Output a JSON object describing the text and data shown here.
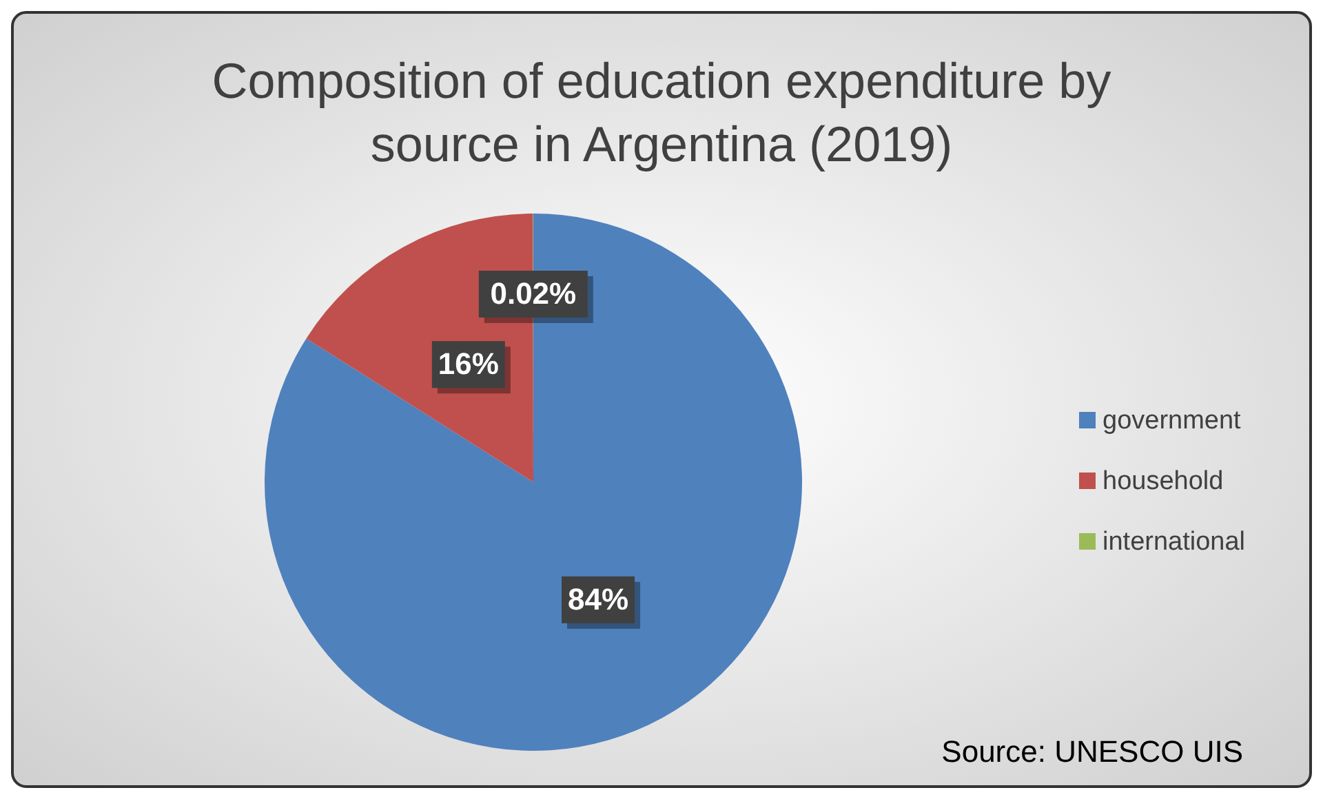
{
  "chart_data": {
    "type": "pie",
    "title": "Composition of education expenditure by source in Argentina (2019)",
    "categories": [
      "government",
      "household",
      "international"
    ],
    "values": [
      84,
      16,
      0.02
    ],
    "value_labels": [
      "84%",
      "16%",
      "0.02%"
    ],
    "colors": [
      "#4f81bd",
      "#c0504d",
      "#9bbb59"
    ],
    "legend": "right",
    "annotations": [
      "Source: UNESCO UIS"
    ]
  }
}
